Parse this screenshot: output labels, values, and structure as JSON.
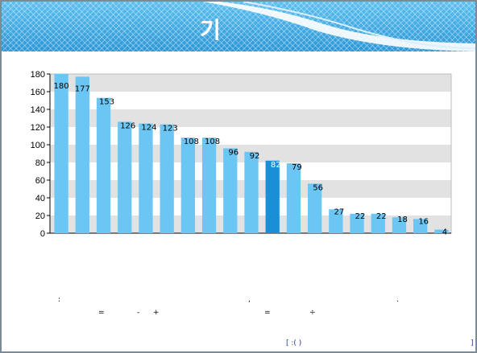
{
  "header": {
    "title": "기"
  },
  "chart_data": {
    "type": "bar",
    "title": "",
    "xlabel": "",
    "ylabel": "",
    "ylim": [
      0,
      180
    ],
    "yticks": [
      0,
      20,
      40,
      60,
      80,
      100,
      120,
      140,
      160,
      180
    ],
    "grid": "alternating horizontal bands",
    "values": [
      180,
      177,
      153,
      126,
      124,
      123,
      108,
      108,
      96,
      92,
      82,
      79,
      56,
      27,
      22,
      22,
      18,
      16,
      4
    ],
    "highlight_index": 10,
    "colors": {
      "bar": "#6cc6f4",
      "highlight": "#1a8fd8",
      "band": "#e2e2e2"
    }
  },
  "notes": {
    "colon": ":",
    "comma": ",",
    "period": ".",
    "eq1": "=",
    "minus": "-",
    "plus": "+",
    "eq2": "=",
    "divide": "÷"
  },
  "footer": {
    "source_open": "[   :(  )",
    "source_close": "]"
  }
}
